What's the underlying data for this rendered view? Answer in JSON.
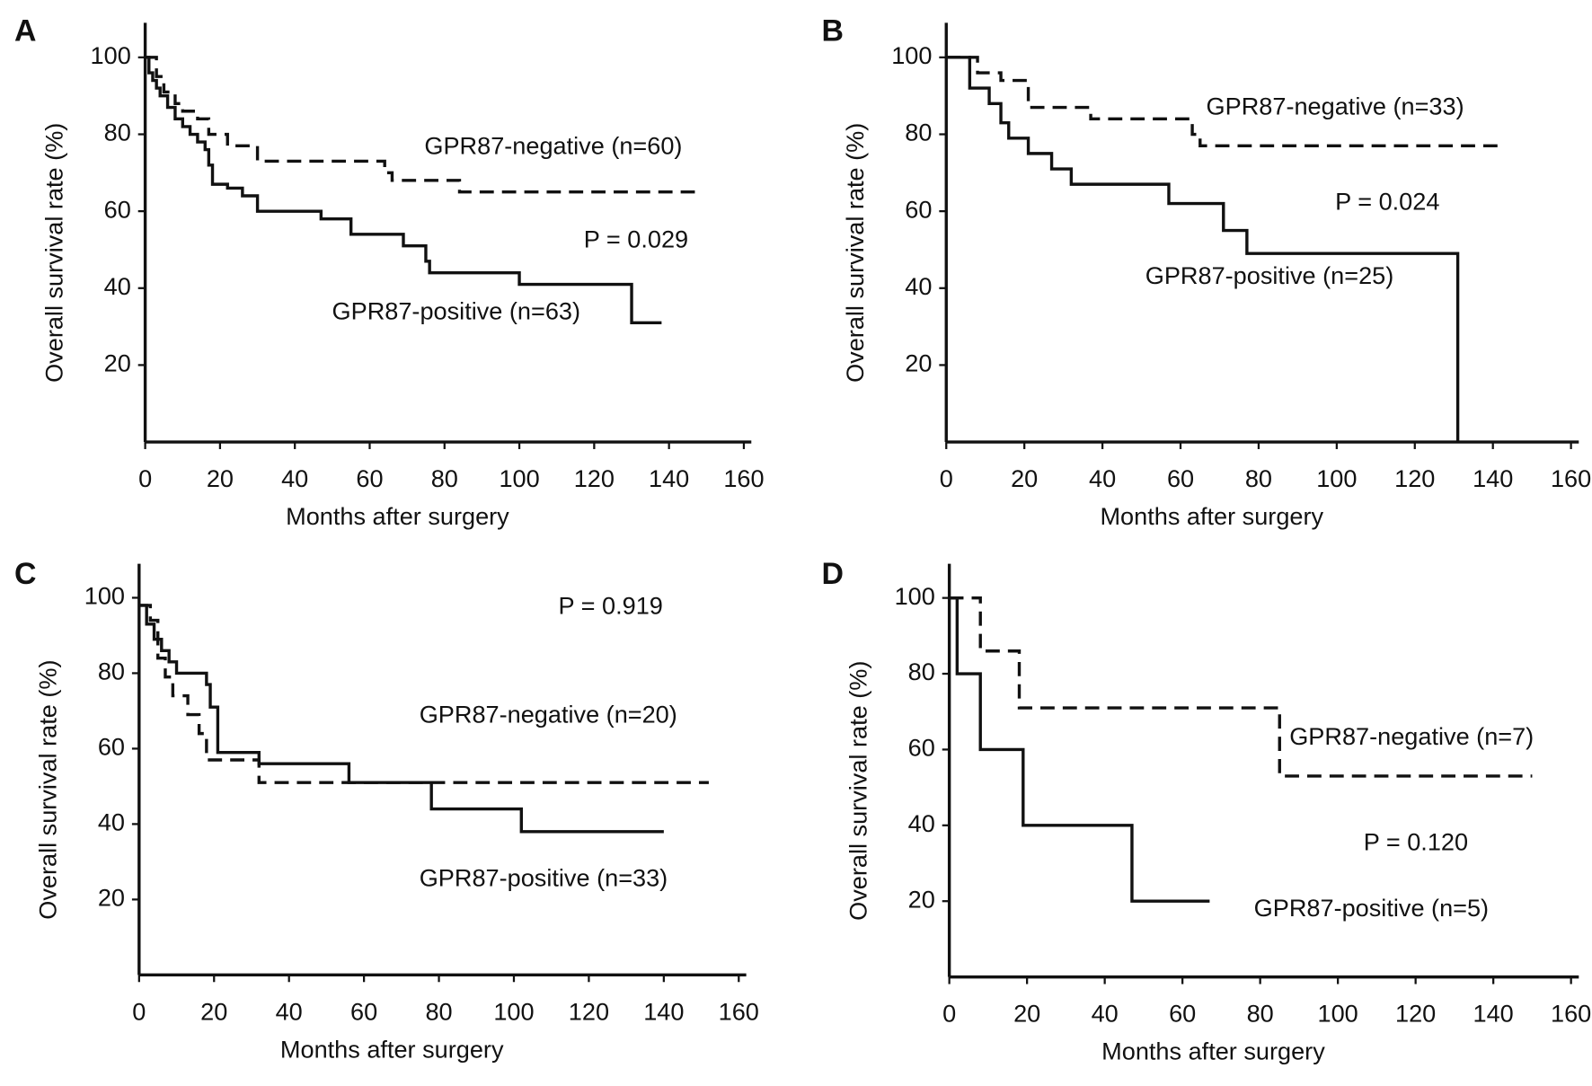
{
  "chart_data": [
    {
      "type": "step",
      "panel_label": "A",
      "ylabel": "Overall survival rate (%)",
      "xlabel": "Months after surgery",
      "p_value": "P = 0.029",
      "xlim": [
        0,
        162
      ],
      "ylim": [
        0,
        109
      ],
      "xticks": [
        0,
        20,
        40,
        60,
        80,
        100,
        120,
        140,
        160
      ],
      "yticks": [
        20,
        40,
        60,
        80,
        100
      ],
      "series": [
        {
          "name": "GPR87-negative (n=60)",
          "color": "#111111",
          "linestyle": "dashed",
          "x": [
            0,
            3,
            5,
            8,
            10,
            14,
            17,
            22,
            30,
            64,
            66,
            84,
            148
          ],
          "values": [
            100,
            95,
            91,
            88,
            86,
            84,
            80,
            77,
            73,
            70,
            68,
            65,
            65
          ]
        },
        {
          "name": "GPR87-positive (n=63)",
          "color": "#111111",
          "linestyle": "solid",
          "x": [
            0,
            1,
            2,
            3,
            4,
            6,
            8,
            10,
            12,
            14,
            16,
            17,
            18,
            22,
            26,
            30,
            47,
            55,
            69,
            75,
            76,
            100,
            130,
            138
          ],
          "values": [
            100,
            96,
            94,
            92,
            90,
            87,
            84,
            82,
            80,
            78,
            76,
            72,
            67,
            66,
            64,
            60,
            58,
            54,
            51,
            47,
            44,
            41,
            31,
            31
          ]
        }
      ]
    },
    {
      "type": "step",
      "panel_label": "B",
      "ylabel": "Overall survival rate (%)",
      "xlabel": "Months after surgery",
      "p_value": "P = 0.024",
      "xlim": [
        0,
        162
      ],
      "ylim": [
        0,
        109
      ],
      "xticks": [
        0,
        20,
        40,
        60,
        80,
        100,
        120,
        140,
        160
      ],
      "yticks": [
        20,
        40,
        60,
        80,
        100
      ],
      "series": [
        {
          "name": "GPR87-negative (n=33)",
          "color": "#111111",
          "linestyle": "dashed",
          "x": [
            0,
            8,
            14,
            21,
            37,
            63,
            65,
            142
          ],
          "values": [
            100,
            96,
            94,
            87,
            84,
            80,
            77,
            77
          ]
        },
        {
          "name": "GPR87-positive (n=25)",
          "color": "#111111",
          "linestyle": "solid",
          "x": [
            0,
            6,
            11,
            14,
            16,
            21,
            27,
            32,
            57,
            71,
            77,
            131
          ],
          "values": [
            100,
            92,
            88,
            83,
            79,
            75,
            71,
            67,
            62,
            55,
            49,
            0
          ]
        }
      ]
    },
    {
      "type": "step",
      "panel_label": "C",
      "ylabel": "Overall survival rate (%)",
      "xlabel": "Months after surgery",
      "p_value": "P = 0.919",
      "xlim": [
        0,
        162
      ],
      "ylim": [
        0,
        109
      ],
      "xticks": [
        0,
        20,
        40,
        60,
        80,
        100,
        120,
        140,
        160
      ],
      "yticks": [
        20,
        40,
        60,
        80,
        100
      ],
      "series": [
        {
          "name": "GPR87-negative (n=20)",
          "color": "#111111",
          "linestyle": "dashed",
          "x": [
            0,
            3,
            5,
            7,
            9,
            13,
            16,
            18,
            32,
            152
          ],
          "values": [
            98,
            94,
            84,
            79,
            74,
            69,
            64,
            57,
            51,
            51
          ]
        },
        {
          "name": "GPR87-positive (n=33)",
          "color": "#111111",
          "linestyle": "solid",
          "x": [
            0,
            2,
            4,
            6,
            8,
            10,
            18,
            19,
            21,
            32,
            56,
            78,
            102,
            140
          ],
          "values": [
            98,
            93,
            89,
            86,
            83,
            80,
            77,
            71,
            59,
            56,
            51,
            44,
            38,
            38
          ]
        }
      ]
    },
    {
      "type": "step",
      "panel_label": "D",
      "ylabel": "Overall survival rate (%)",
      "xlabel": "Months after surgery",
      "p_value": "P = 0.120",
      "xlim": [
        0,
        162
      ],
      "ylim": [
        0,
        109
      ],
      "xticks": [
        0,
        20,
        40,
        60,
        80,
        100,
        120,
        140,
        160
      ],
      "yticks": [
        20,
        40,
        60,
        80,
        100
      ],
      "series": [
        {
          "name": "GPR87-negative (n=7)",
          "color": "#111111",
          "linestyle": "dashed",
          "x": [
            0,
            8,
            18,
            85,
            150
          ],
          "values": [
            100,
            86,
            71,
            53,
            53
          ]
        },
        {
          "name": "GPR87-positive (n=5)",
          "color": "#111111",
          "linestyle": "solid",
          "x": [
            0,
            2,
            8,
            19,
            47,
            67
          ],
          "values": [
            100,
            80,
            60,
            40,
            20,
            20
          ]
        }
      ]
    }
  ]
}
